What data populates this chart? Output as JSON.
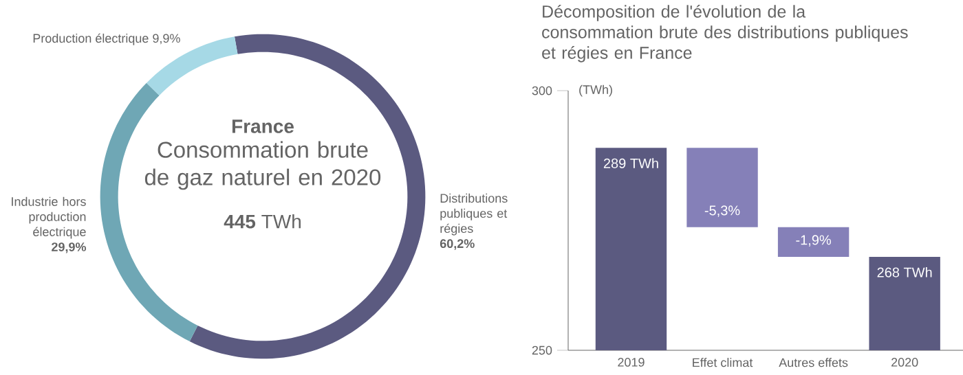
{
  "chart_data": [
    {
      "type": "donut",
      "title": "France",
      "subtitle": "Consommation brute de gaz naturel en 2020",
      "annotations": [
        "**445** TWh"
      ],
      "categories": [
        "Distributions publiques et régies",
        "Industrie hors production électrique",
        "Production électrique"
      ],
      "values": [
        60.2,
        29.9,
        9.9
      ],
      "value_labels": [
        "60,2%",
        "29,9%",
        "9,9%"
      ],
      "colors": [
        "#5b5a80",
        "#6fa7b5",
        "#a6d9e6"
      ]
    },
    {
      "type": "bar",
      "title": "Décomposition de l'évolution de la consommation brute des distributions publiques et régies en France",
      "ylabel": "(TWh)",
      "categories": [
        "2019",
        "Effet climat",
        "Autres effets",
        "2020"
      ],
      "values": [
        289,
        -15.3,
        -5.7,
        268
      ],
      "base": [
        null,
        289,
        273.7,
        null
      ],
      "value_labels": [
        "289 TWh",
        null,
        null,
        "268 TWh"
      ],
      "annotations": [
        {
          "text": "-5,3%",
          "x": "Effet climat",
          "y": 273.7
        },
        {
          "text": "-1,9%",
          "x": "Autres effets",
          "y": 268
        }
      ],
      "colors": [
        "#5b5a80",
        "#8580b8",
        "#8580b8",
        "#5b5a80"
      ],
      "ylim": [
        250,
        300
      ],
      "yticks": [
        250,
        300
      ]
    }
  ]
}
